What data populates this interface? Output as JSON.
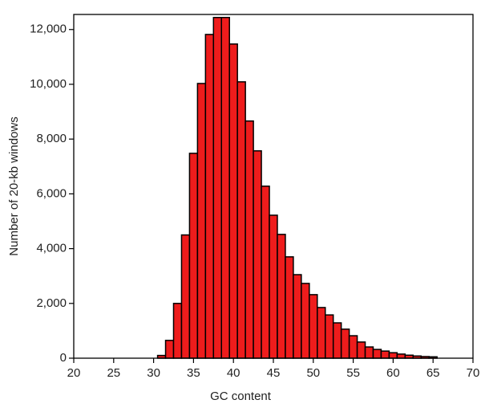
{
  "chart_data": {
    "type": "histogram",
    "xlabel": "GC content",
    "ylabel": "Number of 20-kb windows",
    "bins": [
      30.5,
      31.5,
      32.5,
      33.5,
      34.5,
      35.5,
      36.5,
      37.5,
      38.5,
      39.5,
      40.5,
      41.5,
      42.5,
      43.5,
      44.5,
      45.5,
      46.5,
      47.5,
      48.5,
      49.5,
      50.5,
      51.5,
      52.5,
      53.5,
      54.5,
      55.5,
      56.5,
      57.5,
      58.5,
      59.5,
      60.5,
      61.5,
      62.5,
      63.5,
      64.5,
      65.5
    ],
    "values": [
      100,
      650,
      2000,
      4500,
      7480,
      10030,
      11820,
      12440,
      12440,
      11470,
      10090,
      8660,
      7570,
      6280,
      5220,
      4520,
      3700,
      3050,
      2730,
      2320,
      1850,
      1580,
      1290,
      1060,
      820,
      590,
      410,
      320,
      260,
      200,
      150,
      110,
      80,
      60,
      50
    ],
    "color": "#ee1c1c",
    "xlim": [
      20,
      70
    ],
    "xticks": [
      20,
      25,
      30,
      35,
      40,
      45,
      50,
      55,
      60,
      65,
      70
    ],
    "ylim": [
      0,
      12550
    ],
    "yticks": [
      0,
      {
        "value": 2000,
        "label": "2,000"
      },
      {
        "value": 4000,
        "label": "4,000"
      },
      {
        "value": 6000,
        "label": "6,000"
      },
      {
        "value": 8000,
        "label": "8,000"
      },
      {
        "value": 10000,
        "label": "10,000"
      },
      {
        "value": 12000,
        "label": "12,000"
      }
    ]
  }
}
